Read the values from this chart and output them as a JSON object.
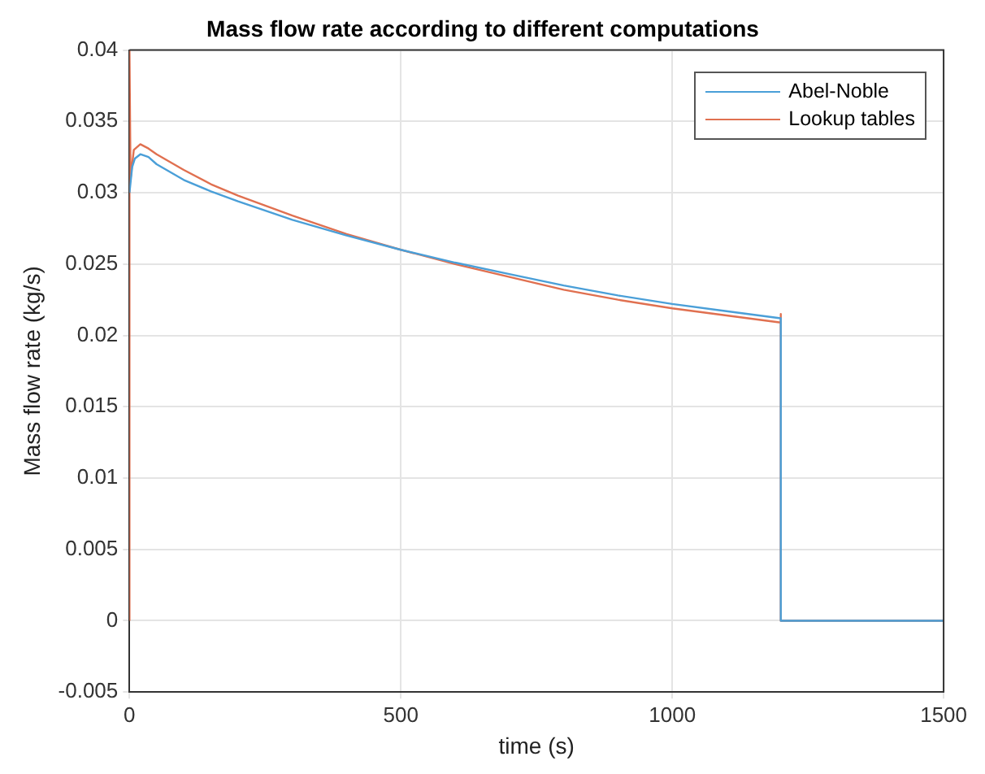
{
  "chart_data": {
    "type": "line",
    "title": "Mass flow rate according to different computations",
    "xlabel": "time (s)",
    "ylabel": "Mass flow rate (kg/s)",
    "series": [
      {
        "name": "Abel-Noble",
        "color": "#4a9fd8",
        "x": [
          0,
          5,
          10,
          20,
          35,
          50,
          100,
          150,
          200,
          300,
          400,
          500,
          600,
          700,
          800,
          900,
          1000,
          1100,
          1200,
          1200,
          1500
        ],
        "values": [
          0.03,
          0.0318,
          0.0324,
          0.0327,
          0.0325,
          0.032,
          0.0309,
          0.0301,
          0.0294,
          0.0281,
          0.027,
          0.026,
          0.0251,
          0.0243,
          0.0235,
          0.0228,
          0.0222,
          0.0217,
          0.0212,
          0,
          0
        ]
      },
      {
        "name": "Lookup tables",
        "color": "#e07050",
        "x": [
          0,
          0,
          2,
          8,
          20,
          35,
          50,
          100,
          150,
          200,
          300,
          400,
          500,
          600,
          700,
          800,
          900,
          1000,
          1100,
          1200,
          1200,
          1200,
          1500
        ],
        "values": [
          0,
          0.04,
          0.031,
          0.033,
          0.0334,
          0.0331,
          0.0327,
          0.0316,
          0.0306,
          0.0298,
          0.0284,
          0.0271,
          0.026,
          0.025,
          0.0241,
          0.0232,
          0.0225,
          0.0219,
          0.0214,
          0.0209,
          0.0215,
          0,
          0
        ]
      }
    ],
    "xlim": [
      0,
      1500
    ],
    "xticks": [
      0,
      500,
      1000,
      1500
    ],
    "ylim": [
      -0.005,
      0.04
    ],
    "yticks": [
      -0.005,
      0,
      0.005,
      0.01,
      0.015,
      0.02,
      0.025,
      0.03,
      0.035,
      0.04
    ],
    "grid": true,
    "legend": "top right",
    "marker": "none",
    "line_style": "solid"
  }
}
